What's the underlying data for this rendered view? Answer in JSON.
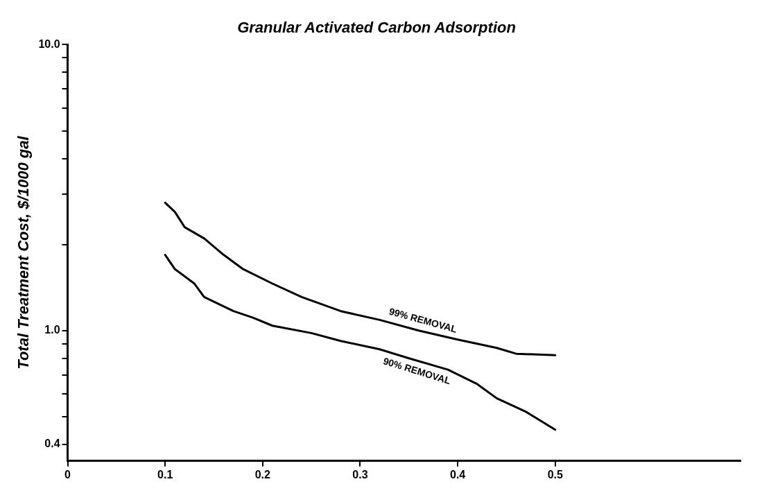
{
  "chart_data": {
    "type": "line",
    "title": "Granular Activated Carbon Adsorption",
    "ylabel": "Total Treatment Cost, $/1000 gal",
    "series": [
      {
        "name": "99% REMOVAL",
        "color": "#000000",
        "x": [
          0.1,
          0.11,
          0.12,
          0.14,
          0.16,
          0.18,
          0.21,
          0.24,
          0.28,
          0.32,
          0.36,
          0.4,
          0.44,
          0.46,
          0.5
        ],
        "values": [
          2.8,
          2.6,
          2.3,
          2.1,
          1.84,
          1.64,
          1.46,
          1.31,
          1.17,
          1.09,
          1.0,
          0.93,
          0.87,
          0.83,
          0.82
        ]
      },
      {
        "name": "90% REMOVAL",
        "color": "#000000",
        "x": [
          0.1,
          0.11,
          0.13,
          0.14,
          0.17,
          0.19,
          0.21,
          0.25,
          0.28,
          0.32,
          0.35,
          0.39,
          0.42,
          0.44,
          0.47,
          0.5
        ],
        "values": [
          1.84,
          1.64,
          1.46,
          1.31,
          1.17,
          1.11,
          1.04,
          0.98,
          0.92,
          0.86,
          0.8,
          0.73,
          0.65,
          0.58,
          0.52,
          0.45
        ]
      }
    ],
    "xlim": [
      0,
      0.69
    ],
    "xticks": [
      0,
      {
        "value": 0.1,
        "label": "0.1"
      },
      {
        "value": 0.2,
        "label": "0.2"
      },
      {
        "value": 0.3,
        "label": "0.3"
      },
      {
        "value": 0.4,
        "label": "0.4"
      },
      {
        "value": 0.5,
        "label": "0.5"
      }
    ],
    "ylim": [
      0.35,
      10
    ],
    "log": "y",
    "yticks": [
      0.4,
      {
        "value": 0.5,
        "label": null
      },
      {
        "value": 0.6,
        "label": null
      },
      {
        "value": 0.7,
        "label": null
      },
      {
        "value": 0.8,
        "label": null
      },
      {
        "value": 0.9,
        "label": null
      },
      {
        "value": 1,
        "label": "1.0"
      },
      {
        "value": 2,
        "label": null
      },
      {
        "value": 3,
        "label": null
      },
      {
        "value": 4,
        "label": null
      },
      {
        "value": 5,
        "label": null
      },
      {
        "value": 6,
        "label": null
      },
      {
        "value": 7,
        "label": null
      },
      {
        "value": 8,
        "label": null
      },
      {
        "value": 9,
        "label": null
      },
      {
        "value": 10,
        "label": "10.0"
      }
    ],
    "grid": false,
    "legend": false,
    "marker": "none",
    "line_style": "solid"
  }
}
